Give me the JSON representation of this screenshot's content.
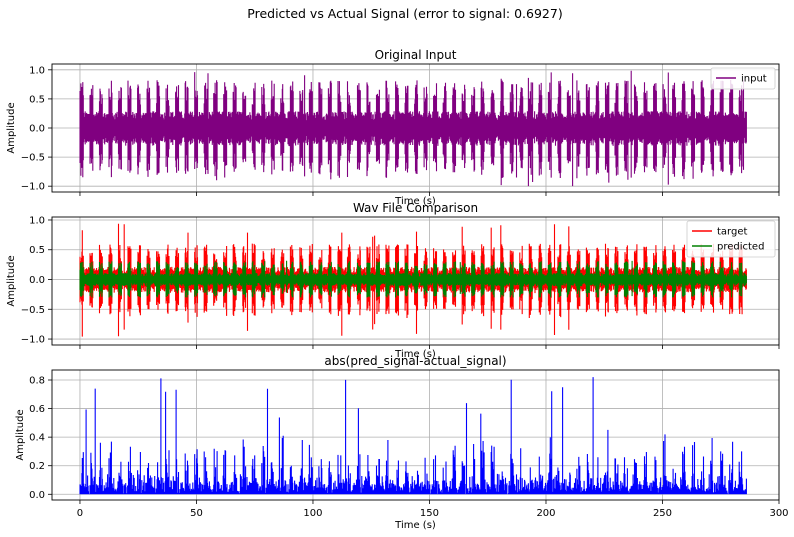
{
  "figure_title": "Predicted vs Actual Signal (error to signal: 0.6927)",
  "chart_data": [
    {
      "type": "line",
      "title": "Original Input",
      "xlabel": "Time (s)",
      "ylabel": "Amplitude",
      "xlim": [
        -12,
        300
      ],
      "ylim": [
        -1.1,
        1.1
      ],
      "xticks": [
        0,
        50,
        100,
        150,
        200,
        250,
        300
      ],
      "yticks": [
        -1.0,
        -0.5,
        0.0,
        0.5,
        1.0
      ],
      "ytick_labels": [
        "−1.0",
        "−0.5",
        "0.0",
        "0.5",
        "1.0"
      ],
      "show_xtick_labels": false,
      "grid": true,
      "legend": "top-right",
      "x_range": [
        0,
        286
      ],
      "series": [
        {
          "name": "input",
          "color": "#800080",
          "peak_envelope": 0.75,
          "max_value": 1.0,
          "min_value": -1.0
        }
      ]
    },
    {
      "type": "line",
      "title": "Wav File Comparison",
      "xlabel": "Time (s)",
      "ylabel": "Amplitude",
      "xlim": [
        -12,
        300
      ],
      "ylim": [
        -1.1,
        1.05
      ],
      "xticks": [
        0,
        50,
        100,
        150,
        200,
        250,
        300
      ],
      "yticks": [
        -1.0,
        -0.5,
        0.0,
        0.5,
        1.0
      ],
      "ytick_labels": [
        "−1.0",
        "−0.5",
        "0.0",
        "0.5",
        "1.0"
      ],
      "show_xtick_labels": false,
      "grid": true,
      "legend": "top-right",
      "x_range": [
        0,
        286
      ],
      "series": [
        {
          "name": "target",
          "color": "#ff0000",
          "peak_envelope": 0.55,
          "max_value": 0.95,
          "min_value": -1.0
        },
        {
          "name": "predicted",
          "color": "#008000",
          "peak_envelope": 0.28,
          "max_value": 0.35,
          "min_value": -0.3
        }
      ]
    },
    {
      "type": "line",
      "title": "abs(pred_signal-actual_signal)",
      "xlabel": "Time (s)",
      "ylabel": "Amplitude",
      "xlim": [
        -12,
        300
      ],
      "ylim": [
        -0.04,
        0.87
      ],
      "xticks": [
        0,
        50,
        100,
        150,
        200,
        250,
        300
      ],
      "xtick_labels": [
        "0",
        "50",
        "100",
        "150",
        "200",
        "250",
        "300"
      ],
      "yticks": [
        0.0,
        0.2,
        0.4,
        0.6,
        0.8
      ],
      "ytick_labels": [
        "0.0",
        "0.2",
        "0.4",
        "0.6",
        "0.8"
      ],
      "show_xtick_labels": true,
      "grid": true,
      "legend": "none",
      "x_range": [
        0,
        286
      ],
      "series": [
        {
          "name": "",
          "color": "#0000ff",
          "peak_envelope": 0.35,
          "max_value": 0.82,
          "min_value": 0.0
        }
      ]
    }
  ]
}
